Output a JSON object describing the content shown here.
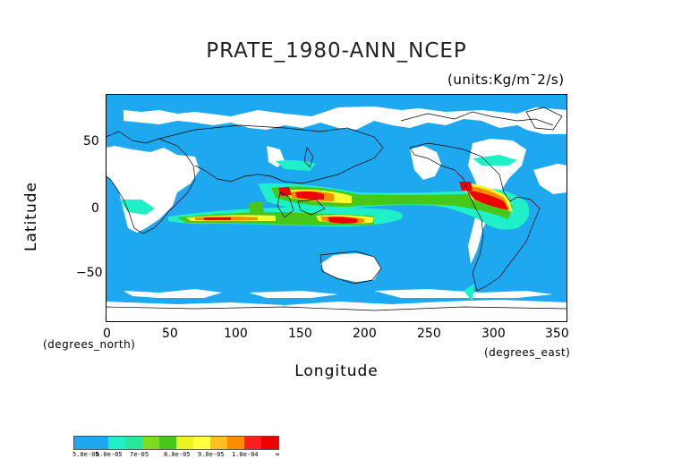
{
  "title": "PRATE_1980-ANN_NCEP",
  "units": "(units:Kg/m¯2/s)",
  "axes": {
    "xlabel": "Longitude",
    "ylabel": "Latitude",
    "x_sub": "(degrees_east)",
    "y_sub": "(degrees_north)",
    "x_ticks": [
      "0",
      "50",
      "100",
      "150",
      "200",
      "250",
      "300",
      "350"
    ],
    "y_ticks": [
      "50",
      "0",
      "−50"
    ]
  },
  "colorbar": {
    "labels": [
      "5.0e-05",
      "6.0e-05",
      "7e-05",
      "8.0e-05",
      "9.0e-05",
      "1.0e-04",
      "∞"
    ],
    "colors": [
      "#1ea8f0",
      "#1ea8f0",
      "#1ff0c8",
      "#28e8a0",
      "#7ddd1c",
      "#45c81a",
      "#eaf520",
      "#ffff40",
      "#ffc020",
      "#ff8c00",
      "#ff1e1e",
      "#ee0000"
    ]
  },
  "chart_data": {
    "type": "heatmap",
    "title": "PRATE_1980-ANN_NCEP",
    "units": "Kg/m¯2/s",
    "xlabel": "Longitude",
    "ylabel": "Latitude",
    "xlim": [
      0,
      360
    ],
    "ylim": [
      -90,
      90
    ],
    "levels": [
      5e-05,
      6e-05,
      7e-05,
      8e-05,
      9e-05,
      0.0001
    ],
    "colors": {
      "background": "#1ea8f0",
      "no_data": "#ffffff",
      "lev1": "#1ff0c8",
      "lev2": "#45c81a",
      "lev3": "#f5ff30",
      "lev4": "#ff8c00",
      "lev5": "#ee0000"
    },
    "patches": [
      {
        "lon": [
          95,
          295
        ],
        "lat": [
          -15,
          20
        ],
        "level": "lev1"
      },
      {
        "lon": [
          40,
          200
        ],
        "lat": [
          -12,
          -2
        ],
        "level": "lev1"
      },
      {
        "lon": [
          290,
          330
        ],
        "lat": [
          -15,
          10
        ],
        "level": "lev1"
      },
      {
        "lon": [
          120,
          250
        ],
        "lat": [
          5,
          15
        ],
        "level": "lev2"
      },
      {
        "lon": [
          130,
          200
        ],
        "lat": [
          -15,
          -5
        ],
        "level": "lev2"
      },
      {
        "lon": [
          300,
          320
        ],
        "lat": [
          -10,
          5
        ],
        "level": "lev3"
      },
      {
        "lon": [
          150,
          190
        ],
        "lat": [
          5,
          12
        ],
        "level": "lev3"
      },
      {
        "lon": [
          140,
          165
        ],
        "lat": [
          7,
          12
        ],
        "level": "lev5"
      },
      {
        "lon": [
          160,
          170
        ],
        "lat": [
          -12,
          -8
        ],
        "level": "lev5"
      },
      {
        "lon": [
          305,
          315
        ],
        "lat": [
          -8,
          0
        ],
        "level": "lev5"
      }
    ]
  }
}
